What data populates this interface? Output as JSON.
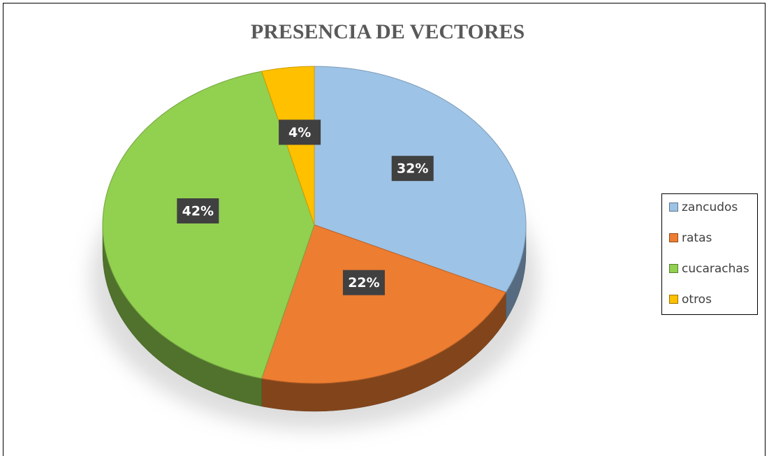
{
  "chart_data": {
    "type": "pie",
    "title": "PRESENCIA DE VECTORES",
    "categories": [
      "zancudos",
      "ratas",
      "cucarachas",
      "otros"
    ],
    "values": [
      32,
      22,
      42,
      4
    ],
    "value_labels": [
      "32%",
      "22%",
      "42%",
      "4%"
    ],
    "colors": [
      "#9dc3e6",
      "#ed7d31",
      "#92d050",
      "#ffc000"
    ],
    "legend": "right"
  }
}
